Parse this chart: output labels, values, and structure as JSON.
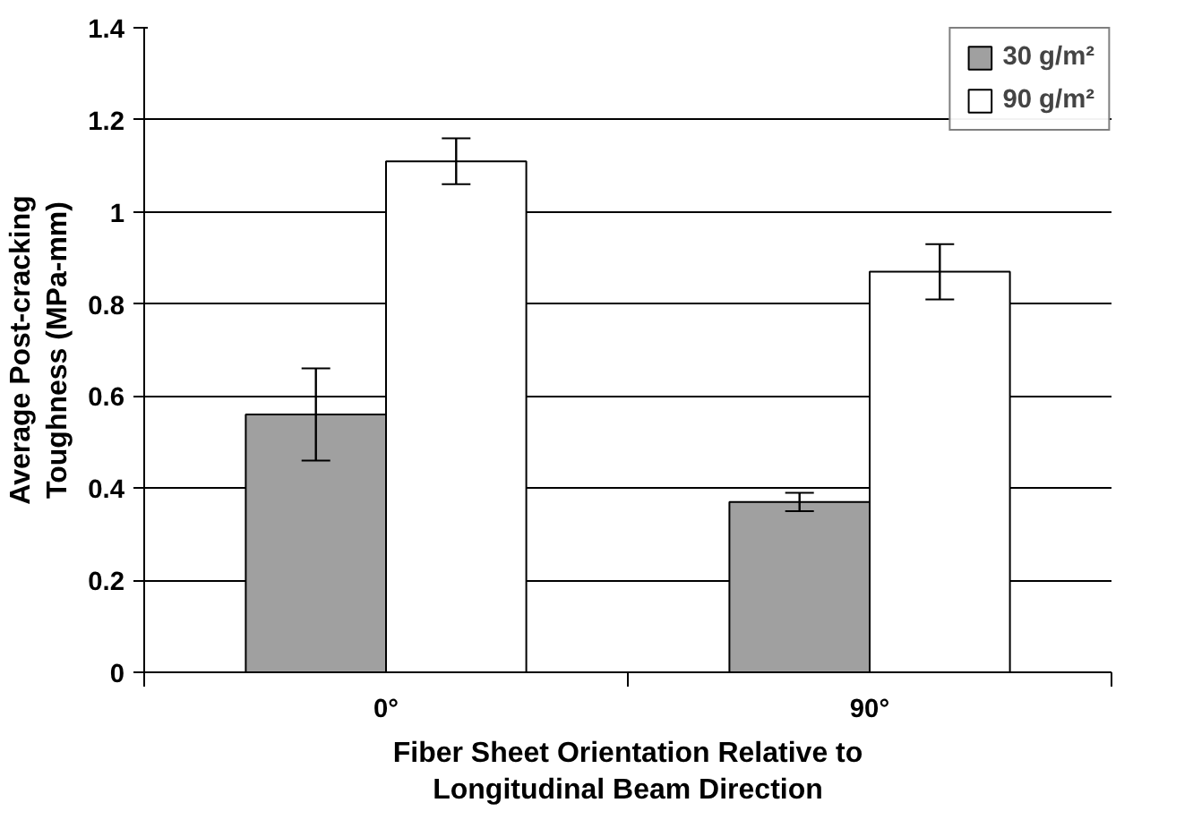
{
  "chart_data": {
    "type": "bar",
    "xlabel": "Fiber Sheet Orientation Relative to\nLongitudinal Beam Direction",
    "ylabel": "Average Post-cracking\nToughness (MPa-mm)",
    "categories": [
      "0°",
      "90°"
    ],
    "series": [
      {
        "name": "30 g/m²",
        "color": "#a0a0a0",
        "values": [
          0.56,
          0.37
        ],
        "errors": [
          0.1,
          0.02
        ]
      },
      {
        "name": "90 g/m²",
        "color": "#ffffff",
        "values": [
          1.11,
          0.87
        ],
        "errors": [
          0.05,
          0.06
        ]
      }
    ],
    "ylim": [
      0,
      1.4
    ],
    "yticks": [
      0,
      0.2,
      0.4,
      0.6,
      0.8,
      1,
      1.2,
      1.4
    ],
    "grid": "y",
    "legend": "top right"
  }
}
